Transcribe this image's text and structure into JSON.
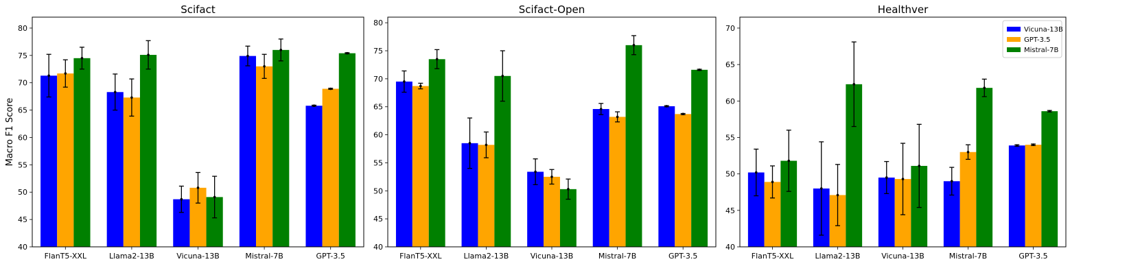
{
  "colors": {
    "Vicuna-13B": "#0000ff",
    "GPT-3.5": "#ffa500",
    "Mistral-7B": "#008000"
  },
  "legend": {
    "entries": [
      "Vicuna-13B",
      "GPT-3.5",
      "Mistral-7B"
    ],
    "placement": "top-right",
    "panel": 2
  },
  "chart_data": [
    {
      "type": "bar",
      "title": "Scifact",
      "ylabel": "Macro F1 Score",
      "ylim": [
        40,
        82
      ],
      "yticks": [
        40,
        45,
        50,
        55,
        60,
        65,
        70,
        75,
        80
      ],
      "categories": [
        "FlanT5-XXL",
        "Llama2-13B",
        "Vicuna-13B",
        "Mistral-7B",
        "GPT-3.5"
      ],
      "series": [
        {
          "name": "Vicuna-13B",
          "values": [
            71.3,
            68.3,
            48.7,
            74.9,
            65.8
          ],
          "errors": [
            3.9,
            3.3,
            2.4,
            1.8,
            0.1
          ]
        },
        {
          "name": "GPT-3.5",
          "values": [
            71.7,
            67.3,
            50.8,
            73.0,
            68.9
          ],
          "errors": [
            2.5,
            3.4,
            2.8,
            2.2,
            0.1
          ]
        },
        {
          "name": "Mistral-7B",
          "values": [
            74.5,
            75.1,
            49.1,
            76.0,
            75.4
          ],
          "errors": [
            2.0,
            2.6,
            3.8,
            2.0,
            0.1
          ]
        }
      ]
    },
    {
      "type": "bar",
      "title": "Scifact-Open",
      "ylabel": "",
      "ylim": [
        40,
        81
      ],
      "yticks": [
        40,
        45,
        50,
        55,
        60,
        65,
        70,
        75,
        80
      ],
      "categories": [
        "FlanT5-XXL",
        "Llama2-13B",
        "Vicuna-13B",
        "Mistral-7B",
        "GPT-3.5"
      ],
      "series": [
        {
          "name": "Vicuna-13B",
          "values": [
            69.5,
            58.5,
            53.4,
            64.6,
            65.1
          ],
          "errors": [
            1.9,
            4.5,
            2.3,
            1.0,
            0.1
          ]
        },
        {
          "name": "GPT-3.5",
          "values": [
            68.7,
            58.2,
            52.5,
            63.2,
            63.7
          ],
          "errors": [
            0.5,
            2.3,
            1.3,
            0.9,
            0.1
          ]
        },
        {
          "name": "Mistral-7B",
          "values": [
            73.5,
            70.5,
            50.3,
            76.0,
            71.6
          ],
          "errors": [
            1.7,
            4.5,
            1.8,
            1.7,
            0.1
          ]
        }
      ]
    },
    {
      "type": "bar",
      "title": "Healthver",
      "ylabel": "",
      "ylim": [
        40,
        71.5
      ],
      "yticks": [
        40,
        45,
        50,
        55,
        60,
        65,
        70
      ],
      "categories": [
        "FlanT5-XXL",
        "Llama2-13B",
        "Vicuna-13B",
        "Mistral-7B",
        "GPT-3.5"
      ],
      "series": [
        {
          "name": "Vicuna-13B",
          "values": [
            50.2,
            48.0,
            49.5,
            49.0,
            53.9
          ],
          "errors": [
            3.2,
            6.4,
            2.2,
            1.9,
            0.1
          ]
        },
        {
          "name": "GPT-3.5",
          "values": [
            48.9,
            47.1,
            49.3,
            53.0,
            54.0
          ],
          "errors": [
            2.2,
            4.2,
            4.9,
            1.0,
            0.1
          ]
        },
        {
          "name": "Mistral-7B",
          "values": [
            51.8,
            62.3,
            51.1,
            61.8,
            58.6
          ],
          "errors": [
            4.2,
            5.8,
            5.7,
            1.2,
            0.1
          ]
        }
      ]
    }
  ]
}
